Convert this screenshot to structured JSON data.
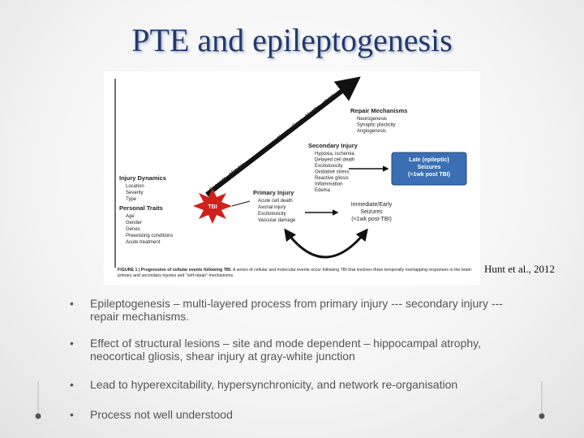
{
  "title": "PTE and epileptogenesis",
  "figure": {
    "timeline": [
      "Seconds - Minutes",
      "Hours - Days - Months - Years"
    ],
    "repair": {
      "heading": "Repair Mechanisms",
      "items": [
        "Neurogenesis",
        "Synaptic plasticity",
        "Angiogenesis"
      ]
    },
    "secondary": {
      "heading": "Secondary Injury",
      "items": [
        "Hypoxia, ischemia",
        "Delayed cell death",
        "Excitotoxicity",
        "Oxidative stress",
        "Reactive gliosis",
        "Inflammation",
        "Edema"
      ]
    },
    "late_seizures": [
      "Late (epileptic)",
      "Seizures",
      "(>1wk post TBI)"
    ],
    "injury_dynamics": {
      "heading": "Injury Dynamics",
      "items": [
        "Location",
        "Severity",
        "Type"
      ]
    },
    "personal_traits": {
      "heading": "Personal Traits",
      "items": [
        "Age",
        "Gender",
        "Genes",
        "Preexisting conditions",
        "Acute treatment"
      ]
    },
    "tbi": "TBI",
    "primary": {
      "heading": "Primary Injury",
      "items": [
        "Acute cell death",
        "Axonal injury",
        "Excitotoxicity",
        "Vascular damage"
      ]
    },
    "early_seizures": [
      "Immediate/Early",
      "Seizures",
      "(<1wk post-TBI)"
    ],
    "caption": {
      "label": "FIGURE 1 | Progression of cellular events following TBI.",
      "text": "A series of cellular and molecular events occur following TBI that involves three temporally overlapping responses in the brain: primary and secondary injuries and “self-repair” mechanisms."
    }
  },
  "citation": "Hunt et al., 2012",
  "bullets": [
    "Epileptogenesis – multi-layered process from primary injury --- secondary injury --- repair mechanisms.",
    "Effect of structural lesions – site and mode dependent – hippocampal atrophy, neocortical gliosis, shear injury at gray-white junction",
    "Lead to hyperexcitability, hypersynchronicity, and network re-organisation",
    "Process not well understood"
  ]
}
